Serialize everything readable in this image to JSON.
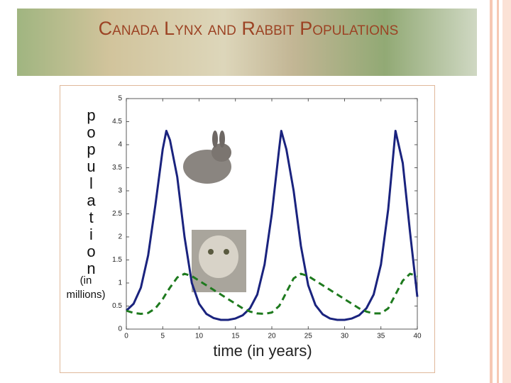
{
  "chart_data": {
    "type": "line",
    "title": "Canada Lynx and Rabbit Populations",
    "x_label": "time (in years)",
    "y_label": "population",
    "y_label_units": "(in millions)",
    "x": [
      0,
      1,
      2,
      3,
      4,
      5,
      5.5,
      6,
      7,
      8,
      9,
      10,
      11,
      12,
      13,
      14,
      15,
      16,
      17,
      18,
      19,
      20,
      21,
      21.3,
      22,
      23,
      24,
      25,
      26,
      27,
      28,
      29,
      30,
      31,
      32,
      33,
      34,
      35,
      36,
      37,
      38,
      39,
      40
    ],
    "series": [
      {
        "color": "#1a237e",
        "dash": "solid",
        "values": [
          0.4,
          0.55,
          0.9,
          1.6,
          2.7,
          3.9,
          4.3,
          4.1,
          3.3,
          2.0,
          1.0,
          0.55,
          0.33,
          0.24,
          0.2,
          0.2,
          0.23,
          0.3,
          0.45,
          0.75,
          1.4,
          2.5,
          3.9,
          4.3,
          3.9,
          3.0,
          1.8,
          0.95,
          0.52,
          0.32,
          0.23,
          0.2,
          0.2,
          0.23,
          0.3,
          0.45,
          0.75,
          1.4,
          2.6,
          4.3,
          3.6,
          2.1,
          0.7
        ]
      },
      {
        "color": "#1e7a1e",
        "dash": "dashed",
        "values": [
          0.4,
          0.35,
          0.33,
          0.35,
          0.45,
          0.65,
          0.78,
          0.9,
          1.12,
          1.2,
          1.15,
          1.05,
          0.95,
          0.85,
          0.75,
          0.65,
          0.55,
          0.45,
          0.38,
          0.34,
          0.33,
          0.36,
          0.5,
          0.58,
          0.8,
          1.1,
          1.2,
          1.15,
          1.05,
          0.95,
          0.85,
          0.75,
          0.65,
          0.55,
          0.45,
          0.38,
          0.34,
          0.34,
          0.45,
          0.75,
          1.05,
          1.2,
          1.15
        ]
      }
    ],
    "xlim": [
      0,
      40
    ],
    "xticks": [
      0,
      5,
      10,
      15,
      20,
      25,
      30,
      35,
      40
    ],
    "ylim": [
      0,
      5
    ],
    "yticks": [
      0,
      0.5,
      1,
      1.5,
      2,
      2.5,
      3,
      3.5,
      4,
      4.5,
      5
    ],
    "grid": false
  }
}
